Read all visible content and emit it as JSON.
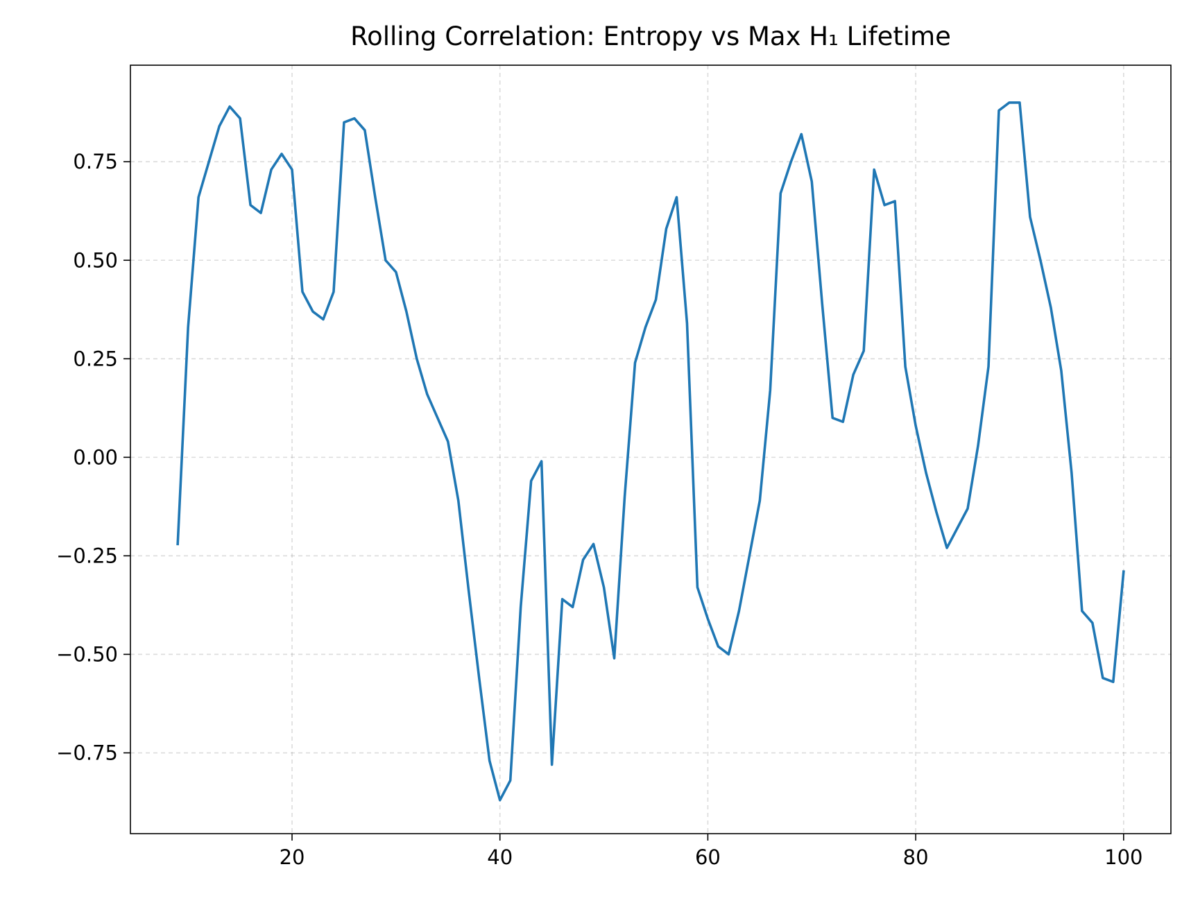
{
  "chart_data": {
    "type": "line",
    "title": "Rolling Correlation: Entropy vs Max H₁ Lifetime",
    "xlabel": "",
    "ylabel": "",
    "xlim": [
      4.45,
      104.55
    ],
    "ylim": [
      -0.955,
      0.995
    ],
    "xticks": [
      20,
      40,
      60,
      80,
      100
    ],
    "xtick_labels": [
      "20",
      "40",
      "60",
      "80",
      "100"
    ],
    "yticks": [
      -0.75,
      -0.5,
      -0.25,
      0.0,
      0.25,
      0.5,
      0.75
    ],
    "ytick_labels": [
      "−0.75",
      "−0.50",
      "−0.25",
      "0.00",
      "0.25",
      "0.50",
      "0.75"
    ],
    "grid": true,
    "legend": "none",
    "series": [
      {
        "color": "#1f77b4",
        "x": [
          9,
          10,
          11,
          12,
          13,
          14,
          15,
          16,
          17,
          18,
          19,
          20,
          21,
          22,
          23,
          24,
          25,
          26,
          27,
          28,
          29,
          30,
          31,
          32,
          33,
          34,
          35,
          36,
          37,
          38,
          39,
          40,
          41,
          42,
          43,
          44,
          45,
          46,
          47,
          48,
          49,
          50,
          51,
          52,
          53,
          54,
          55,
          56,
          57,
          58,
          59,
          60,
          61,
          62,
          63,
          64,
          65,
          66,
          67,
          68,
          69,
          70,
          71,
          72,
          73,
          74,
          75,
          76,
          77,
          78,
          79,
          80,
          81,
          82,
          83,
          84,
          85,
          86,
          87,
          88,
          89,
          90,
          91,
          92,
          93,
          94,
          95,
          96,
          97,
          98,
          99,
          100
        ],
        "y": [
          -0.22,
          0.33,
          0.66,
          0.75,
          0.84,
          0.89,
          0.86,
          0.64,
          0.62,
          0.73,
          0.77,
          0.73,
          0.42,
          0.37,
          0.35,
          0.42,
          0.85,
          0.86,
          0.83,
          0.66,
          0.5,
          0.47,
          0.37,
          0.25,
          0.16,
          0.1,
          0.04,
          -0.11,
          -0.34,
          -0.56,
          -0.77,
          -0.87,
          -0.82,
          -0.38,
          -0.06,
          -0.01,
          -0.78,
          -0.36,
          -0.38,
          -0.26,
          -0.22,
          -0.33,
          -0.51,
          -0.1,
          0.24,
          0.33,
          0.4,
          0.58,
          0.66,
          0.34,
          -0.33,
          -0.41,
          -0.48,
          -0.5,
          -0.39,
          -0.25,
          -0.11,
          0.17,
          0.67,
          0.75,
          0.82,
          0.7,
          0.39,
          0.1,
          0.09,
          0.21,
          0.27,
          0.73,
          0.64,
          0.65,
          0.23,
          0.08,
          -0.04,
          -0.14,
          -0.23,
          -0.18,
          -0.13,
          0.03,
          0.23,
          0.88,
          0.9,
          0.9,
          0.61,
          0.5,
          0.38,
          0.22,
          -0.04,
          -0.39,
          -0.42,
          -0.56,
          -0.57,
          -0.29
        ]
      }
    ]
  }
}
